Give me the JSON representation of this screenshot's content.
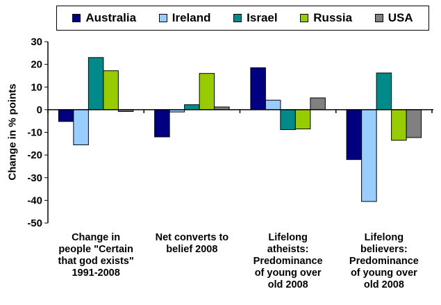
{
  "chart_data": {
    "type": "bar",
    "ylabel": "Change in % points",
    "ylim": [
      -50,
      30
    ],
    "yticks": [
      30,
      20,
      10,
      0,
      -10,
      -20,
      -30,
      -40,
      -50
    ],
    "grid": false,
    "legend_placement": "top",
    "categories": [
      "Change in\npeople \"Certain\nthat god exists\"\n1991-2008",
      "Net converts to\nbelief 2008",
      "Lifelong\natheists:\nPredominance\nof young over\nold 2008",
      "Lifelong\nbelievers:\nPredominance\nof young over\nold 2008"
    ],
    "series": [
      {
        "name": "Australia",
        "color": "#000080",
        "values": [
          -5.2,
          -12.0,
          18.5,
          -22.0
        ]
      },
      {
        "name": "Ireland",
        "color": "#99CCFF",
        "values": [
          -15.5,
          -1.0,
          4.2,
          -40.5
        ]
      },
      {
        "name": "Israel",
        "color": "#008B8B",
        "values": [
          23.0,
          2.2,
          -8.8,
          16.2
        ]
      },
      {
        "name": "Russia",
        "color": "#99CC00",
        "values": [
          17.2,
          16.0,
          -8.5,
          -13.5
        ]
      },
      {
        "name": "USA",
        "color": "#808080",
        "values": [
          -0.8,
          1.2,
          5.2,
          -12.3
        ]
      }
    ]
  }
}
